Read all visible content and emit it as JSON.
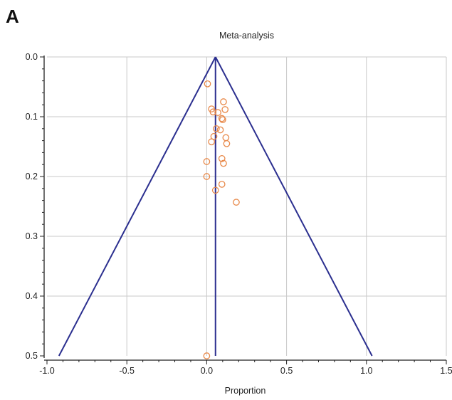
{
  "panel_label": "A",
  "chart_data": {
    "type": "scatter",
    "subtype": "funnel-plot",
    "title": "Meta-analysis",
    "xlabel": "Proportion",
    "ylabel": "",
    "xlim": [
      -1.0,
      1.5
    ],
    "ylim": [
      0.0,
      0.5
    ],
    "y_inverted": true,
    "grid": true,
    "x_ticks": [
      {
        "value": -1.0,
        "label": "-1.0"
      },
      {
        "value": -0.5,
        "label": "-0.5"
      },
      {
        "value": 0.0,
        "label": "0.0"
      },
      {
        "value": 0.5,
        "label": "0.5"
      },
      {
        "value": 1.0,
        "label": "1.0"
      },
      {
        "value": 1.5,
        "label": "1.5"
      }
    ],
    "y_ticks": [
      {
        "value": 0.0,
        "label": "0.0"
      },
      {
        "value": 0.1,
        "label": "0.1"
      },
      {
        "value": 0.2,
        "label": "0.2"
      },
      {
        "value": 0.3,
        "label": "0.3"
      },
      {
        "value": 0.4,
        "label": "0.4"
      },
      {
        "value": 0.5,
        "label": "0.5"
      }
    ],
    "pooled_estimate": 0.055,
    "funnel": {
      "apex": [
        0.055,
        0.0
      ],
      "left_base": [
        -0.925,
        0.5
      ],
      "right_base": [
        1.035,
        0.5
      ]
    },
    "points": [
      {
        "x": 0.005,
        "y": 0.045
      },
      {
        "x": 0.105,
        "y": 0.075
      },
      {
        "x": 0.03,
        "y": 0.087
      },
      {
        "x": 0.115,
        "y": 0.088
      },
      {
        "x": 0.04,
        "y": 0.092
      },
      {
        "x": 0.07,
        "y": 0.093
      },
      {
        "x": 0.095,
        "y": 0.103
      },
      {
        "x": 0.1,
        "y": 0.105
      },
      {
        "x": 0.06,
        "y": 0.12
      },
      {
        "x": 0.085,
        "y": 0.122
      },
      {
        "x": 0.045,
        "y": 0.133
      },
      {
        "x": 0.12,
        "y": 0.135
      },
      {
        "x": 0.03,
        "y": 0.142
      },
      {
        "x": 0.125,
        "y": 0.145
      },
      {
        "x": 0.095,
        "y": 0.17
      },
      {
        "x": 0.0,
        "y": 0.175
      },
      {
        "x": 0.105,
        "y": 0.178
      },
      {
        "x": 0.0,
        "y": 0.2
      },
      {
        "x": 0.095,
        "y": 0.213
      },
      {
        "x": 0.055,
        "y": 0.223
      },
      {
        "x": 0.185,
        "y": 0.243
      },
      {
        "x": 0.0,
        "y": 0.5
      }
    ],
    "colors": {
      "funnel": "#2b2f8f",
      "points": "#e8894a",
      "grid": "#c9c9c9",
      "axis": "#222222"
    }
  }
}
